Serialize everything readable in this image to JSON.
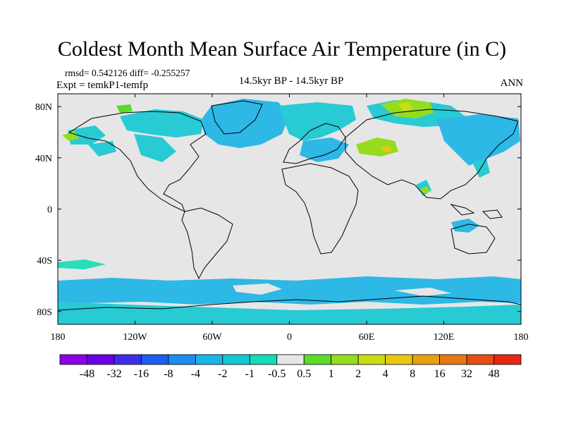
{
  "title": "Coldest Month Mean Surface Air Temperature (in C)",
  "stats_text": "rmsd= 0.542126 diff= -0.255257",
  "experiment_text": "Expt = temkP1-temfp",
  "period_text": "14.5kyr BP - 14.5kyr BP",
  "season_text": "ANN",
  "map": {
    "projection": "cylindrical equidistant",
    "lon_range": [
      -180,
      180
    ],
    "lat_range": [
      -90,
      90
    ],
    "background_color": "#e6e6e6",
    "coastline_color": "#000000",
    "x_ticks": [
      {
        "value": -180,
        "label": "180"
      },
      {
        "value": -120,
        "label": "120W"
      },
      {
        "value": -60,
        "label": "60W"
      },
      {
        "value": 0,
        "label": "0"
      },
      {
        "value": 60,
        "label": "60E"
      },
      {
        "value": 120,
        "label": "120E"
      },
      {
        "value": 180,
        "label": "180"
      }
    ],
    "y_ticks": [
      {
        "value": 80,
        "label": "80N"
      },
      {
        "value": 40,
        "label": "40N"
      },
      {
        "value": 0,
        "label": "0"
      },
      {
        "value": -40,
        "label": "40S"
      },
      {
        "value": -80,
        "label": "80S"
      }
    ]
  },
  "colorbar": {
    "colors": [
      "#8c00e6",
      "#6a00e6",
      "#3c2ee6",
      "#1c5ef0",
      "#1e8cf0",
      "#1ab4e6",
      "#14c8d2",
      "#14dcb4",
      "#e6e6e6",
      "#5adc28",
      "#96dc1e",
      "#c8dc14",
      "#e6c814",
      "#e6a014",
      "#e67814",
      "#e64e14",
      "#e62814"
    ],
    "labels": [
      "-48",
      "-32",
      "-16",
      "-8",
      "-4",
      "-2",
      "-1",
      "-0.5",
      "0.5",
      "1",
      "2",
      "4",
      "8",
      "16",
      "32",
      "48"
    ]
  }
}
